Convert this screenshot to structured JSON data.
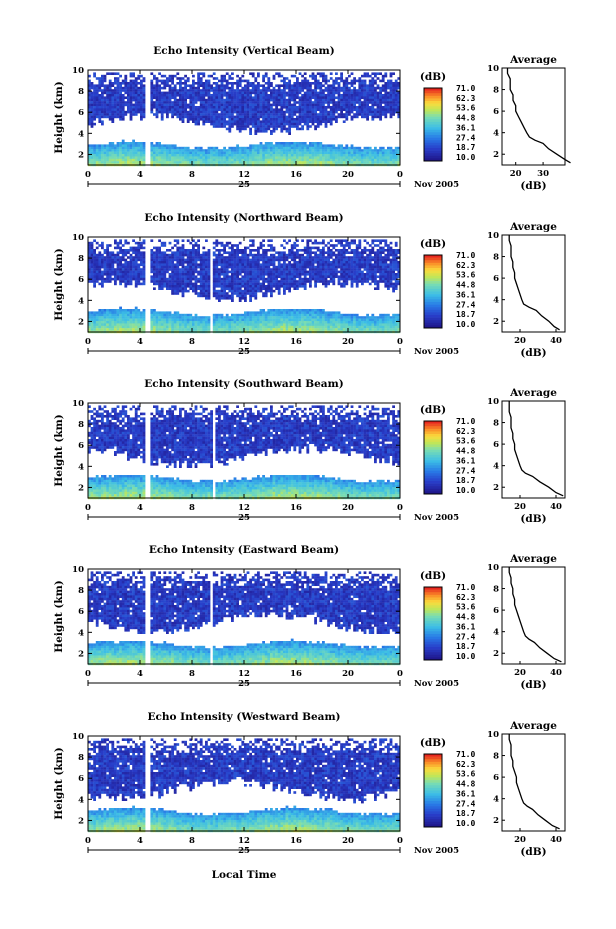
{
  "panels": [
    {
      "title": "Echo Intensity (Vertical Beam)",
      "ylabel": "Height (km)",
      "yticks": [
        "2",
        "4",
        "6",
        "8",
        "10"
      ],
      "xticks": [
        "0",
        "4",
        "8",
        "12",
        "16",
        "20",
        "0"
      ],
      "day_label": "25",
      "month_label": "Nov 2005",
      "colorbar_unit": "(dB)",
      "colorbar_levels": [
        "71.0",
        "62.3",
        "53.6",
        "44.8",
        "36.1",
        "27.4",
        "18.7",
        "10.0"
      ],
      "avg_title": "Average",
      "avg_xlabel": "(dB)",
      "avg_yticks": [
        "2",
        "4",
        "6",
        "8",
        "10"
      ],
      "avg_xticks": [
        "20",
        "30"
      ]
    },
    {
      "title": "Echo Intensity (Northward Beam)",
      "ylabel": "Height (km)",
      "yticks": [
        "2",
        "4",
        "6",
        "8",
        "10"
      ],
      "xticks": [
        "0",
        "4",
        "8",
        "12",
        "16",
        "20",
        "0"
      ],
      "day_label": "25",
      "month_label": "Nov 2005",
      "colorbar_unit": "(dB)",
      "colorbar_levels": [
        "71.0",
        "62.3",
        "53.6",
        "44.8",
        "36.1",
        "27.4",
        "18.7",
        "10.0"
      ],
      "avg_title": "Average",
      "avg_xlabel": "(dB)",
      "avg_yticks": [
        "2",
        "4",
        "6",
        "8",
        "10"
      ],
      "avg_xticks": [
        "20",
        "40"
      ]
    },
    {
      "title": "Echo Intensity (Southward Beam)",
      "ylabel": "Height (km)",
      "yticks": [
        "2",
        "4",
        "6",
        "8",
        "10"
      ],
      "xticks": [
        "0",
        "4",
        "8",
        "12",
        "16",
        "20",
        "0"
      ],
      "day_label": "25",
      "month_label": "Nov 2005",
      "colorbar_unit": "(dB)",
      "colorbar_levels": [
        "71.0",
        "62.3",
        "53.6",
        "44.8",
        "36.1",
        "27.4",
        "18.7",
        "10.0"
      ],
      "avg_title": "Average",
      "avg_xlabel": "(dB)",
      "avg_yticks": [
        "2",
        "4",
        "6",
        "8",
        "10"
      ],
      "avg_xticks": [
        "20",
        "40"
      ]
    },
    {
      "title": "Echo Intensity (Eastward Beam)",
      "ylabel": "Height (km)",
      "yticks": [
        "2",
        "4",
        "6",
        "8",
        "10"
      ],
      "xticks": [
        "0",
        "4",
        "8",
        "12",
        "16",
        "20",
        "0"
      ],
      "day_label": "25",
      "month_label": "Nov 2005",
      "colorbar_unit": "(dB)",
      "colorbar_levels": [
        "71.0",
        "62.3",
        "53.6",
        "44.8",
        "36.1",
        "27.4",
        "18.7",
        "10.0"
      ],
      "avg_title": "Average",
      "avg_xlabel": "(dB)",
      "avg_yticks": [
        "2",
        "4",
        "6",
        "8",
        "10"
      ],
      "avg_xticks": [
        "20",
        "40"
      ]
    },
    {
      "title": "Echo Intensity (Westward Beam)",
      "ylabel": "Height (km)",
      "yticks": [
        "2",
        "4",
        "6",
        "8",
        "10"
      ],
      "xticks": [
        "0",
        "4",
        "8",
        "12",
        "16",
        "20",
        "0"
      ],
      "day_label": "25",
      "month_label": "Nov 2005",
      "colorbar_unit": "(dB)",
      "colorbar_levels": [
        "71.0",
        "62.3",
        "53.6",
        "44.8",
        "36.1",
        "27.4",
        "18.7",
        "10.0"
      ],
      "avg_title": "Average",
      "avg_xlabel": "(dB)",
      "avg_yticks": [
        "2",
        "4",
        "6",
        "8",
        "10"
      ],
      "avg_xticks": [
        "20",
        "40"
      ]
    }
  ],
  "bottom_xlabel": "Local Time",
  "chart_data": [
    {
      "type": "heatmap",
      "title": "Echo Intensity (Vertical Beam)",
      "ylabel": "Height (km)",
      "xlabel": "Local Time",
      "xlim": [
        0,
        24
      ],
      "ylim": [
        1,
        10
      ],
      "colorbar_range_dB": [
        10.0,
        71.0
      ],
      "data_gaps_hours": [
        [
          4.2,
          4.7
        ]
      ],
      "profile_title": "Average",
      "profile_x_dB": [
        40,
        38,
        35,
        32,
        30,
        27,
        25,
        24,
        23,
        22,
        21,
        20,
        20,
        19,
        19,
        18,
        18,
        18,
        17,
        17
      ],
      "profile_height_km": [
        1.2,
        1.5,
        2.0,
        2.5,
        3.0,
        3.3,
        3.6,
        4.0,
        4.5,
        5.0,
        5.5,
        6.0,
        6.5,
        7.0,
        7.5,
        8.0,
        8.5,
        9.0,
        9.5,
        10.0
      ],
      "profile_xlim": [
        15,
        38
      ]
    },
    {
      "type": "heatmap",
      "title": "Echo Intensity (Northward Beam)",
      "ylabel": "Height (km)",
      "xlim": [
        0,
        24
      ],
      "ylim": [
        1,
        10
      ],
      "colorbar_range_dB": [
        10.0,
        71.0
      ],
      "data_gaps_hours": [
        [
          4.2,
          4.7
        ],
        [
          9.3,
          9.5
        ]
      ],
      "profile_title": "Average",
      "profile_x_dB": [
        42,
        39,
        36,
        32,
        29,
        25,
        22,
        21,
        20,
        19,
        18,
        17,
        17,
        16,
        16,
        15,
        15,
        15,
        14,
        14
      ],
      "profile_height_km": [
        1.2,
        1.5,
        2.0,
        2.5,
        3.0,
        3.3,
        3.6,
        4.0,
        4.5,
        5.0,
        5.5,
        6.0,
        6.5,
        7.0,
        7.5,
        8.0,
        8.5,
        9.0,
        9.5,
        10.0
      ],
      "profile_xlim": [
        10,
        45
      ]
    },
    {
      "type": "heatmap",
      "title": "Echo Intensity (Southward Beam)",
      "ylabel": "Height (km)",
      "xlim": [
        0,
        24
      ],
      "ylim": [
        1,
        10
      ],
      "colorbar_range_dB": [
        10.0,
        71.0
      ],
      "data_gaps_hours": [
        [
          4.2,
          4.7
        ],
        [
          9.5,
          9.7
        ]
      ],
      "profile_title": "Average",
      "profile_x_dB": [
        44,
        40,
        36,
        31,
        27,
        23,
        21,
        20,
        19,
        18,
        17,
        17,
        16,
        16,
        15,
        15,
        15,
        14,
        14,
        14
      ],
      "profile_height_km": [
        1.2,
        1.5,
        2.0,
        2.5,
        3.0,
        3.3,
        3.6,
        4.0,
        4.5,
        5.0,
        5.5,
        6.0,
        6.5,
        7.0,
        7.5,
        8.0,
        8.5,
        9.0,
        9.5,
        10.0
      ],
      "profile_xlim": [
        10,
        45
      ]
    },
    {
      "type": "heatmap",
      "title": "Echo Intensity (Eastward Beam)",
      "ylabel": "Height (km)",
      "xlim": [
        0,
        24
      ],
      "ylim": [
        1,
        10
      ],
      "colorbar_range_dB": [
        10.0,
        71.0
      ],
      "data_gaps_hours": [
        [
          4.2,
          4.7
        ],
        [
          9.2,
          9.4
        ]
      ],
      "profile_title": "Average",
      "profile_x_dB": [
        43,
        39,
        35,
        31,
        28,
        25,
        23,
        22,
        21,
        20,
        19,
        18,
        17,
        17,
        16,
        16,
        15,
        15,
        14,
        14
      ],
      "profile_height_km": [
        1.2,
        1.5,
        2.0,
        2.5,
        3.0,
        3.3,
        3.6,
        4.0,
        4.5,
        5.0,
        5.5,
        6.0,
        6.5,
        7.0,
        7.5,
        8.0,
        8.5,
        9.0,
        9.5,
        10.0
      ],
      "profile_xlim": [
        10,
        45
      ]
    },
    {
      "type": "heatmap",
      "title": "Echo Intensity (Westward Beam)",
      "ylabel": "Height (km)",
      "xlabel": "Local Time",
      "xlim": [
        0,
        24
      ],
      "ylim": [
        1,
        10
      ],
      "colorbar_range_dB": [
        10.0,
        71.0
      ],
      "data_gaps_hours": [
        [
          4.2,
          4.7
        ],
        [
          9.2,
          9.3
        ]
      ],
      "profile_title": "Average",
      "profile_x_dB": [
        42,
        38,
        34,
        30,
        27,
        24,
        22,
        21,
        20,
        19,
        18,
        18,
        17,
        16,
        16,
        15,
        15,
        15,
        14,
        14
      ],
      "profile_height_km": [
        1.2,
        1.5,
        2.0,
        2.5,
        3.0,
        3.3,
        3.6,
        4.0,
        4.5,
        5.0,
        5.5,
        6.0,
        6.5,
        7.0,
        7.5,
        8.0,
        8.5,
        9.0,
        9.5,
        10.0
      ],
      "profile_xlim": [
        10,
        45
      ]
    }
  ]
}
